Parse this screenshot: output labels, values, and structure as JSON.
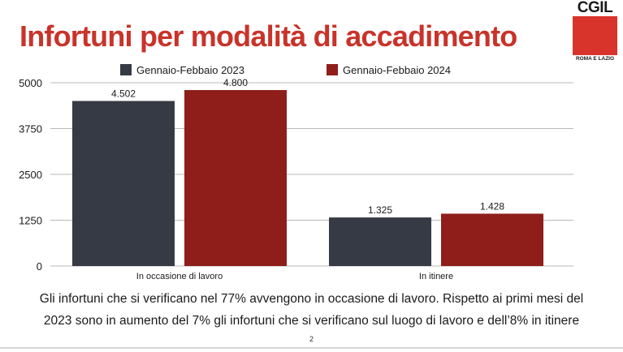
{
  "slide": {
    "title": "Infortuni per modalità di accadimento",
    "caption_line1": "Gli infortuni che si verificano nel 77% avvengono in occasione di lavoro. Rispetto ai primi mesi del",
    "caption_line2": "2023 sono in aumento del 7% gli infortuni che si verificano sul luogo di lavoro e dell’8% in itinere",
    "page_number": "2"
  },
  "logo": {
    "text": "CGIL",
    "subtitle": "ROMA E LAZIO",
    "color": "#d9342b"
  },
  "chart_data": {
    "type": "bar",
    "title": "",
    "xlabel": "",
    "ylabel": "",
    "categories": [
      "In occasione di lavoro",
      "In itinere"
    ],
    "series": [
      {
        "name": "Gennaio-Febbaio 2023",
        "color": "#363a44",
        "values": [
          4502,
          1325
        ],
        "labels": [
          "4.502",
          "1.325"
        ]
      },
      {
        "name": "Gennaio-Febbaio 2024",
        "color": "#8f1e1a",
        "values": [
          4800,
          1428
        ],
        "labels": [
          "4.800",
          "1.428"
        ]
      }
    ],
    "ylim": [
      0,
      5000
    ],
    "yticks": [
      0,
      1250,
      2500,
      3750,
      5000
    ],
    "ytick_labels": [
      "0",
      "1250",
      "2500",
      "3750",
      "5000"
    ],
    "grid": true,
    "legend": "top-center"
  }
}
